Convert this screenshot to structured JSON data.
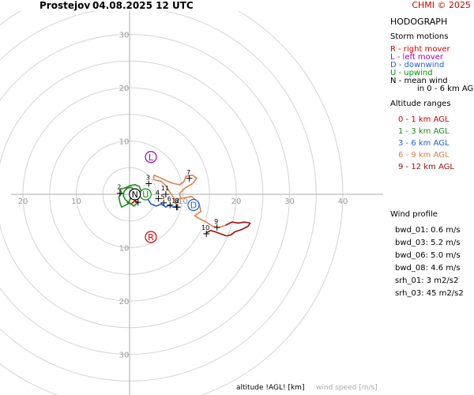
{
  "header": {
    "station": "Prostejov",
    "datetime": "04.08.2025 12 UTC",
    "credit": "CHMI © 2025"
  },
  "legend": {
    "title": "HODOGRAPH",
    "storm_motions_title": "Storm motions",
    "storm_motions": [
      {
        "text": "R - right mover",
        "color": "#d40000"
      },
      {
        "text": "L - left mover",
        "color": "#9900cc"
      },
      {
        "text": "D - downwind",
        "color": "#1f5fd6"
      },
      {
        "text": "U - upwind",
        "color": "#009900"
      },
      {
        "text": "N - mean wind",
        "color": "#000000"
      },
      {
        "text": "in 0 - 6 km AGL",
        "color": "#000000"
      }
    ],
    "altitude_title": "Altitude ranges",
    "altitude_ranges": [
      {
        "text": "0 - 1 km AGL",
        "color": "#d40000"
      },
      {
        "text": "1 - 3 km AGL",
        "color": "#1a8c1a"
      },
      {
        "text": "3 - 6 km AGL",
        "color": "#1f5fd6"
      },
      {
        "text": "6 - 9 km AGL",
        "color": "#e0804d"
      },
      {
        "text": "9 - 12 km AGL",
        "color": "#a01010"
      }
    ],
    "wind_profile_title": "Wind profile",
    "wind_profile": [
      "bwd_01: 0.6 m/s",
      "bwd_03: 5.2 m/s",
      "bwd_06: 5.0 m/s",
      "bwd_08: 4.6 m/s",
      "srh_01: 3 m2/s2",
      "srh_03: 45 m2/s2"
    ]
  },
  "footer": {
    "altitude_label": "altitude !AGL! [km]",
    "speed_label": "wind speed [m/s]"
  },
  "chart_data": {
    "type": "line",
    "rings": [
      5,
      10,
      15,
      20,
      25,
      30,
      35,
      40
    ],
    "x_ticks": [
      {
        "label": "20",
        "value": -20
      },
      {
        "label": "10",
        "value": -10
      },
      {
        "label": "10",
        "value": 10
      },
      {
        "label": "20",
        "value": 20
      },
      {
        "label": "30",
        "value": 30
      },
      {
        "label": "40",
        "value": 40
      }
    ],
    "y_ticks": [
      {
        "label": "30",
        "value": 30
      },
      {
        "label": "20",
        "value": 20
      },
      {
        "label": "10",
        "value": 10
      },
      {
        "label": "10",
        "value": -10
      },
      {
        "label": "20",
        "value": -20
      },
      {
        "label": "30",
        "value": -30
      }
    ],
    "segments": [
      {
        "range": "0-1",
        "color": "#d40000",
        "points": [
          [
            -0.5,
            -1.5
          ],
          [
            0.3,
            -1.8
          ],
          [
            1.0,
            -1.2
          ],
          [
            1.6,
            -1.5
          ]
        ]
      },
      {
        "range": "1-3",
        "color": "#1a8c1a",
        "points": [
          [
            1.6,
            -1.5
          ],
          [
            0.8,
            -2.2
          ],
          [
            0.0,
            -1.6
          ],
          [
            -0.8,
            -1.0
          ],
          [
            -1.2,
            -0.2
          ],
          [
            -1.0,
            0.6
          ],
          [
            -0.4,
            1.2
          ],
          [
            0.4,
            1.3
          ],
          [
            0.8,
            0.4
          ],
          [
            0.2,
            -0.8
          ],
          [
            -0.3,
            -1.8
          ],
          [
            -1.5,
            -2.4
          ],
          [
            -1.8,
            -1.5
          ],
          [
            -2.0,
            -0.5
          ],
          [
            -1.5,
            0.3
          ],
          [
            -1.8,
            1.0
          ],
          [
            -0.8,
            1.2
          ],
          [
            0.0,
            1.6
          ],
          [
            1.0,
            1.8
          ],
          [
            1.8,
            1.5
          ],
          [
            2.2,
            0.6
          ],
          [
            2.0,
            0.0
          ]
        ]
      },
      {
        "range": "3-6",
        "color": "#1f5fd6",
        "points": [
          [
            2.0,
            0.0
          ],
          [
            2.6,
            -0.4
          ],
          [
            3.2,
            -0.2
          ],
          [
            3.5,
            -1.0
          ],
          [
            4.0,
            -1.8
          ],
          [
            5.0,
            -2.2
          ],
          [
            6.0,
            -1.8
          ],
          [
            6.8,
            -2.4
          ],
          [
            7.5,
            -2.0
          ],
          [
            8.2,
            -2.4
          ],
          [
            8.8,
            -2.3
          ]
        ]
      },
      {
        "range": "6-9",
        "color": "#e0804d",
        "points": [
          [
            8.8,
            -2.3
          ],
          [
            8.4,
            -0.8
          ],
          [
            7.5,
            0.5
          ],
          [
            6.8,
            1.6
          ],
          [
            6.0,
            2.4
          ],
          [
            5.2,
            2.6
          ],
          [
            4.5,
            2.8
          ],
          [
            4.6,
            3.6
          ],
          [
            6.0,
            3.0
          ],
          [
            7.2,
            2.4
          ],
          [
            8.4,
            2.0
          ],
          [
            9.4,
            1.8
          ],
          [
            10.2,
            2.4
          ],
          [
            10.6,
            3.4
          ],
          [
            11.8,
            3.6
          ],
          [
            12.6,
            3.0
          ],
          [
            11.8,
            2.0
          ],
          [
            10.4,
            1.2
          ],
          [
            9.4,
            0.2
          ],
          [
            9.6,
            -0.8
          ],
          [
            11.6,
            -0.4
          ],
          [
            13.0,
            -1.6
          ],
          [
            13.4,
            -3.2
          ],
          [
            12.2,
            -4.0
          ],
          [
            12.8,
            -4.4
          ],
          [
            14.4,
            -5.2
          ],
          [
            15.6,
            -6.0
          ],
          [
            16.8,
            -6.2
          ],
          [
            18.0,
            -5.8
          ]
        ]
      },
      {
        "range": "9-12",
        "color": "#a01010",
        "points": [
          [
            18.0,
            -5.8
          ],
          [
            19.2,
            -5.2
          ],
          [
            20.4,
            -5.4
          ],
          [
            21.6,
            -5.2
          ],
          [
            22.6,
            -5.4
          ],
          [
            22.2,
            -6.0
          ],
          [
            21.0,
            -6.6
          ],
          [
            19.8,
            -7.0
          ],
          [
            19.0,
            -7.6
          ],
          [
            18.2,
            -7.8
          ],
          [
            17.0,
            -7.4
          ],
          [
            16.0,
            -7.0
          ],
          [
            15.2,
            -6.8
          ],
          [
            14.4,
            -7.2
          ]
        ]
      }
    ],
    "height_markers": [
      {
        "label": "1",
        "x": 1.6,
        "y": -1.5
      },
      {
        "label": "2",
        "x": -1.8,
        "y": 0.2
      },
      {
        "label": "3",
        "x": 3.6,
        "y": 2.0
      },
      {
        "label": "4",
        "x": 5.4,
        "y": -0.8
      },
      {
        "label": "5",
        "x": 6.4,
        "y": -1.6
      },
      {
        "label": "6",
        "x": 7.6,
        "y": -2.0
      },
      {
        "label": "7",
        "x": 11.2,
        "y": 3.0
      },
      {
        "label": "8",
        "x": 9.0,
        "y": -2.4
      },
      {
        "label": "9",
        "x": 16.4,
        "y": -6.2
      },
      {
        "label": "10",
        "x": 14.4,
        "y": -7.4
      },
      {
        "label": "11",
        "x": 6.8,
        "y": 0.0
      },
      {
        "label": "12",
        "x": 8.8,
        "y": -2.4
      }
    ],
    "storm_motions": [
      {
        "label": "L",
        "x": 4.0,
        "y": 7.0,
        "color": "#9900cc"
      },
      {
        "label": "R",
        "x": 4.0,
        "y": -8.0,
        "color": "#d40000"
      },
      {
        "label": "D",
        "x": 12.0,
        "y": -2.0,
        "color": "#1f5fd6"
      },
      {
        "label": "U",
        "x": 3.0,
        "y": 0.0,
        "color": "#009900"
      },
      {
        "label": "N",
        "x": 1.0,
        "y": 0.0,
        "color": "#000000"
      }
    ]
  }
}
